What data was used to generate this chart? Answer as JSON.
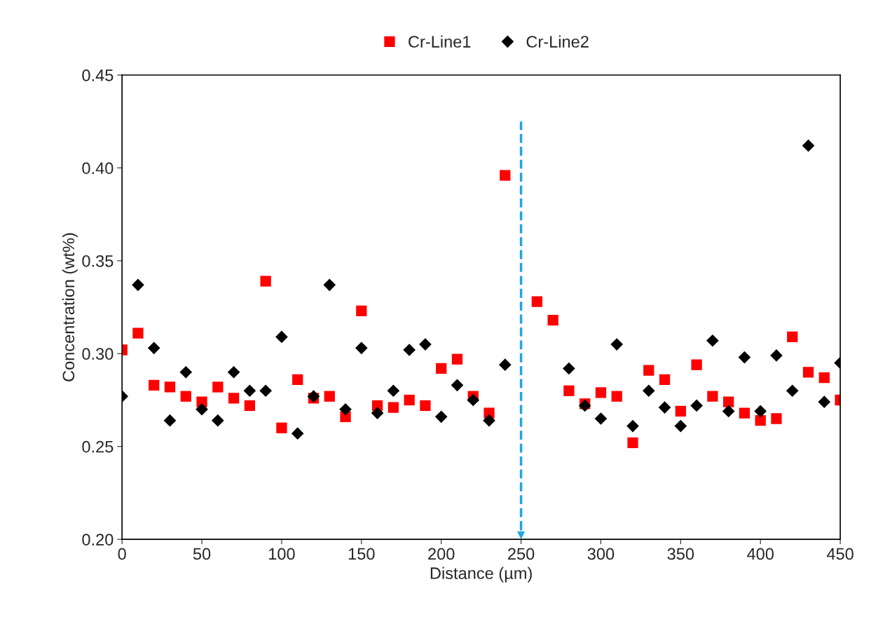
{
  "chart_data": {
    "type": "scatter",
    "xlabel": "Distance (µm)",
    "ylabel": "Concentration (wt%)",
    "xlim": [
      0,
      450
    ],
    "xticks": [
      0,
      50,
      100,
      150,
      200,
      250,
      300,
      350,
      400,
      450
    ],
    "ylim": [
      0.2,
      0.45
    ],
    "yticks": [
      {
        "value": 0.2,
        "label": "0.20"
      },
      {
        "value": 0.25,
        "label": "0.25"
      },
      {
        "value": 0.3,
        "label": "0.30"
      },
      {
        "value": 0.35,
        "label": "0.35"
      },
      {
        "value": 0.4,
        "label": "0.40"
      },
      {
        "value": 0.45,
        "label": "0.45"
      }
    ],
    "grid": false,
    "legend": "top",
    "series": [
      {
        "name": "Cr-Line1",
        "color": "#ff0000",
        "marker": "square",
        "x": [
          0,
          10,
          20,
          30,
          40,
          50,
          60,
          70,
          80,
          90,
          100,
          110,
          120,
          130,
          140,
          150,
          160,
          170,
          180,
          190,
          200,
          210,
          220,
          230,
          240,
          260,
          270,
          280,
          290,
          300,
          310,
          320,
          330,
          340,
          350,
          360,
          370,
          380,
          390,
          400,
          410,
          420,
          430,
          440,
          450
        ],
        "values": [
          0.302,
          0.311,
          0.283,
          0.282,
          0.277,
          0.274,
          0.282,
          0.276,
          0.272,
          0.339,
          0.26,
          0.286,
          0.276,
          0.277,
          0.266,
          0.323,
          0.272,
          0.271,
          0.275,
          0.272,
          0.292,
          0.297,
          0.277,
          0.268,
          0.396,
          0.328,
          0.318,
          0.28,
          0.273,
          0.279,
          0.277,
          0.252,
          0.291,
          0.286,
          0.269,
          0.294,
          0.277,
          0.274,
          0.268,
          0.264,
          0.265,
          0.309,
          0.29,
          0.287,
          0.275
        ]
      },
      {
        "name": "Cr-Line2",
        "color": "#000000",
        "marker": "diamond",
        "x": [
          0,
          10,
          20,
          30,
          40,
          50,
          60,
          70,
          80,
          90,
          100,
          110,
          120,
          130,
          140,
          150,
          160,
          170,
          180,
          190,
          200,
          210,
          220,
          230,
          240,
          280,
          290,
          300,
          310,
          320,
          330,
          340,
          350,
          360,
          370,
          380,
          390,
          400,
          410,
          420,
          430,
          440,
          450
        ],
        "values": [
          0.277,
          0.337,
          0.303,
          0.264,
          0.29,
          0.27,
          0.264,
          0.29,
          0.28,
          0.28,
          0.309,
          0.257,
          0.277,
          0.337,
          0.27,
          0.303,
          0.268,
          0.28,
          0.302,
          0.305,
          0.266,
          0.283,
          0.275,
          0.264,
          0.294,
          0.292,
          0.272,
          0.265,
          0.305,
          0.261,
          0.28,
          0.271,
          0.261,
          0.272,
          0.307,
          0.269,
          0.298,
          0.269,
          0.299,
          0.28,
          0.412,
          0.274,
          0.295
        ]
      }
    ],
    "ref_lines": [
      {
        "axis": "x",
        "value": 250,
        "color": "#1ea7e1",
        "line_style": "dashed"
      }
    ]
  }
}
